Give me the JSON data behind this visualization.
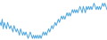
{
  "values": [
    5,
    4,
    6,
    3,
    5,
    4,
    3,
    5,
    4,
    3,
    4,
    3,
    2,
    4,
    3,
    2,
    3,
    2,
    1,
    3,
    2,
    1,
    2,
    1,
    2,
    1,
    0,
    1,
    2,
    1,
    0,
    1,
    0,
    1,
    0,
    1,
    0,
    1,
    0,
    1,
    2,
    1,
    2,
    1,
    2,
    3,
    2,
    3,
    4,
    3,
    4,
    5,
    4,
    5,
    6,
    5,
    6,
    7,
    6,
    7,
    6,
    7,
    8,
    7,
    8,
    7,
    8,
    9,
    8,
    9,
    8,
    9,
    8,
    9,
    10,
    9,
    8,
    10,
    9,
    8,
    10,
    9,
    10,
    9,
    10,
    9,
    10,
    11,
    10,
    9,
    10,
    9,
    10,
    9,
    10,
    11,
    10,
    11,
    10,
    9
  ],
  "line_color": "#4da6df",
  "background_color": "#ffffff",
  "linewidth": 0.7
}
